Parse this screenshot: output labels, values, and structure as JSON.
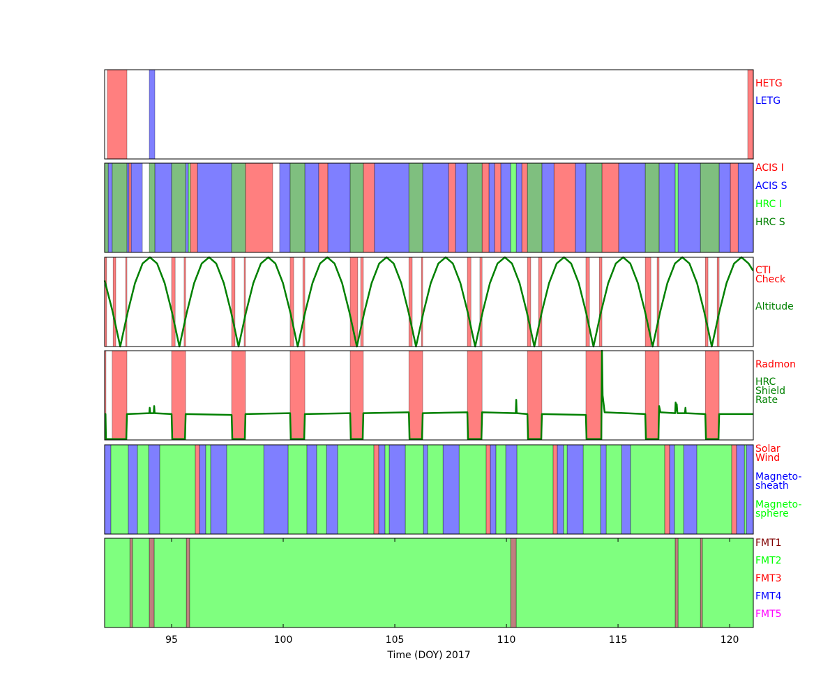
{
  "chart_data": [
    {
      "type": "span",
      "xlim": [
        92.0,
        121.06
      ],
      "series": [
        {
          "name": "HETG",
          "color": "#ff0000",
          "spans": [
            [
              92.12,
              93.0
            ],
            [
              120.81,
              121.06
            ]
          ]
        },
        {
          "name": "LETG",
          "color": "#0000ff",
          "spans": [
            [
              94.0,
              94.25
            ]
          ]
        }
      ]
    },
    {
      "type": "span",
      "xlim": [
        92.0,
        121.06
      ],
      "series": [
        {
          "name": "ACIS I",
          "color": "#ff0000",
          "spans": [
            [
              93.09,
              93.19
            ],
            [
              95.84,
              96.16
            ],
            [
              98.31,
              99.53
            ],
            [
              101.59,
              102.0
            ],
            [
              103.59,
              104.09
            ],
            [
              107.41,
              107.72
            ],
            [
              108.91,
              109.22
            ],
            [
              109.47,
              109.75
            ],
            [
              110.69,
              110.94
            ],
            [
              112.13,
              113.09
            ],
            [
              114.28,
              115.03
            ],
            [
              120.03,
              120.38
            ]
          ]
        },
        {
          "name": "ACIS S",
          "color": "#0000ff",
          "spans": [
            [
              92.16,
              92.34
            ],
            [
              93.0,
              93.09
            ],
            [
              93.19,
              93.69
            ],
            [
              94.25,
              95.0
            ],
            [
              95.63,
              95.75
            ],
            [
              96.16,
              97.69
            ],
            [
              99.84,
              100.31
            ],
            [
              100.97,
              101.59
            ],
            [
              102.0,
              103.0
            ],
            [
              104.09,
              105.63
            ],
            [
              106.25,
              107.41
            ],
            [
              107.72,
              108.25
            ],
            [
              109.22,
              109.47
            ],
            [
              109.75,
              110.19
            ],
            [
              110.44,
              110.69
            ],
            [
              111.59,
              112.13
            ],
            [
              113.09,
              113.56
            ],
            [
              115.03,
              116.22
            ],
            [
              116.84,
              117.56
            ],
            [
              117.69,
              118.69
            ],
            [
              119.53,
              120.03
            ],
            [
              120.38,
              121.06
            ]
          ]
        },
        {
          "name": "HRC I",
          "color": "#00ff00",
          "spans": [
            [
              95.75,
              95.84
            ],
            [
              110.19,
              110.44
            ],
            [
              117.56,
              117.69
            ]
          ]
        },
        {
          "name": "HRC S",
          "color": "#008000",
          "spans": [
            [
              92.0,
              92.16
            ],
            [
              92.34,
              93.0
            ],
            [
              94.0,
              94.25
            ],
            [
              95.0,
              95.63
            ],
            [
              97.69,
              98.31
            ],
            [
              100.31,
              100.97
            ],
            [
              103.0,
              103.59
            ],
            [
              105.63,
              106.25
            ],
            [
              108.25,
              108.91
            ],
            [
              110.94,
              111.59
            ],
            [
              113.56,
              114.28
            ],
            [
              116.22,
              116.84
            ],
            [
              118.69,
              119.53
            ]
          ]
        }
      ]
    },
    {
      "type": "span",
      "xlim": [
        92.0,
        121.06
      ],
      "ylim": [
        0,
        1
      ],
      "series": [
        {
          "name": "CTI\nCheck",
          "color": "#ff0000",
          "spans": [
            [
              92.0,
              92.09
            ],
            [
              92.38,
              92.5
            ],
            [
              92.94,
              93.0
            ],
            [
              95.0,
              95.16
            ],
            [
              95.56,
              95.63
            ],
            [
              97.69,
              97.84
            ],
            [
              98.25,
              98.31
            ],
            [
              100.31,
              100.47
            ],
            [
              100.88,
              100.97
            ],
            [
              103.0,
              103.34
            ],
            [
              103.47,
              103.59
            ],
            [
              105.63,
              105.78
            ],
            [
              106.19,
              106.25
            ],
            [
              108.25,
              108.41
            ],
            [
              108.81,
              108.91
            ],
            [
              110.94,
              111.09
            ],
            [
              111.44,
              111.59
            ],
            [
              113.56,
              113.72
            ],
            [
              114.16,
              114.28
            ],
            [
              116.22,
              116.47
            ],
            [
              116.75,
              116.84
            ],
            [
              118.91,
              119.03
            ],
            [
              119.44,
              119.53
            ]
          ]
        },
        {
          "name": "Altitude",
          "color": "#008000",
          "x": [
            92.0,
            92.35,
            92.7,
            93.03,
            93.36,
            93.7,
            94.03,
            94.35,
            94.69,
            95.02,
            95.35,
            95.68,
            96.01,
            96.35,
            96.68,
            97.0,
            97.34,
            97.67,
            98.0,
            98.33,
            98.66,
            99.0,
            99.33,
            99.65,
            99.99,
            100.32,
            100.65,
            100.98,
            101.31,
            101.65,
            101.98,
            102.3,
            102.64,
            102.97,
            103.3,
            103.63,
            103.96,
            104.3,
            104.63,
            104.95,
            105.29,
            105.62,
            105.95,
            106.28,
            106.61,
            106.95,
            107.28,
            107.6,
            107.94,
            108.27,
            108.6,
            108.93,
            109.26,
            109.6,
            109.93,
            110.25,
            110.59,
            110.92,
            111.25,
            111.58,
            111.91,
            112.25,
            112.58,
            112.9,
            113.24,
            113.57,
            113.9,
            114.23,
            114.56,
            114.9,
            115.23,
            115.55,
            115.89,
            116.22,
            116.55,
            116.88,
            117.21,
            117.55,
            117.88,
            118.2,
            118.54,
            118.87,
            119.2,
            119.53,
            119.86,
            120.2,
            120.53,
            120.85,
            121.05
          ],
          "values": [
            0.74,
            0.4,
            0,
            0.38,
            0.71,
            0.93,
            1.0,
            0.93,
            0.71,
            0.38,
            0,
            0.38,
            0.71,
            0.93,
            1.0,
            0.93,
            0.71,
            0.38,
            0,
            0.38,
            0.71,
            0.93,
            1.0,
            0.93,
            0.71,
            0.38,
            0,
            0.38,
            0.71,
            0.93,
            1.0,
            0.93,
            0.71,
            0.38,
            0,
            0.38,
            0.71,
            0.93,
            1.0,
            0.93,
            0.71,
            0.38,
            0,
            0.38,
            0.71,
            0.93,
            1.0,
            0.93,
            0.71,
            0.38,
            0,
            0.38,
            0.71,
            0.93,
            1.0,
            0.93,
            0.71,
            0.38,
            0,
            0.38,
            0.71,
            0.93,
            1.0,
            0.93,
            0.71,
            0.38,
            0,
            0.38,
            0.71,
            0.93,
            1.0,
            0.93,
            0.71,
            0.38,
            0,
            0.38,
            0.71,
            0.93,
            1.0,
            0.93,
            0.71,
            0.38,
            0,
            0.38,
            0.71,
            0.93,
            1.0,
            0.93,
            0.85
          ]
        }
      ]
    },
    {
      "type": "span",
      "xlim": [
        92.0,
        121.06
      ],
      "ylim": [
        0,
        1
      ],
      "series": [
        {
          "name": "Radmon",
          "color": "#ff0000",
          "spans": [
            [
              92.0,
              92.06
            ],
            [
              92.34,
              93.0
            ],
            [
              95.0,
              95.63
            ],
            [
              97.69,
              98.31
            ],
            [
              100.31,
              100.97
            ],
            [
              103.0,
              103.59
            ],
            [
              105.63,
              106.25
            ],
            [
              108.25,
              108.91
            ],
            [
              110.94,
              111.59
            ],
            [
              113.56,
              114.28
            ],
            [
              116.22,
              116.84
            ],
            [
              118.91,
              119.53
            ]
          ]
        },
        {
          "name": "HRC\nShield\nRate",
          "color": "#008000",
          "x": [
            92.0,
            92.04,
            92.06,
            92.97,
            93.0,
            94.0,
            94.02,
            94.04,
            94.2,
            94.22,
            94.24,
            95.0,
            95.03,
            95.6,
            95.63,
            97.69,
            97.72,
            98.28,
            98.31,
            100.31,
            100.34,
            100.94,
            100.97,
            103.0,
            103.03,
            103.56,
            103.59,
            105.63,
            105.66,
            106.22,
            106.25,
            108.25,
            108.28,
            108.88,
            108.91,
            110.42,
            110.44,
            110.46,
            110.94,
            110.97,
            111.56,
            111.59,
            113.56,
            113.59,
            114.25,
            114.28,
            114.31,
            114.4,
            116.22,
            116.25,
            116.81,
            116.84,
            116.9,
            117.56,
            117.58,
            117.6,
            117.63,
            117.66,
            118.0,
            118.02,
            118.04,
            118.91,
            118.94,
            119.5,
            119.53,
            121.05
          ],
          "values": [
            0.29,
            0.29,
            0.01,
            0.01,
            0.29,
            0.3,
            0.36,
            0.3,
            0.3,
            0.38,
            0.3,
            0.29,
            0.01,
            0.01,
            0.29,
            0.28,
            0.01,
            0.01,
            0.29,
            0.3,
            0.01,
            0.01,
            0.29,
            0.3,
            0.01,
            0.01,
            0.3,
            0.31,
            0.01,
            0.01,
            0.3,
            0.31,
            0.01,
            0.01,
            0.31,
            0.3,
            0.45,
            0.3,
            0.29,
            0.01,
            0.01,
            0.29,
            0.28,
            0.01,
            0.01,
            1.0,
            0.5,
            0.31,
            0.29,
            0.01,
            0.01,
            0.38,
            0.31,
            0.3,
            0.42,
            0.33,
            0.4,
            0.3,
            0.3,
            0.36,
            0.3,
            0.29,
            0.01,
            0.01,
            0.29,
            0.29
          ]
        }
      ]
    },
    {
      "type": "span",
      "xlim": [
        92.0,
        121.06
      ],
      "series": [
        {
          "name": "Solar\nWind",
          "color": "#ff0000",
          "spans": [
            [
              96.06,
              96.25
            ],
            [
              104.06,
              104.28
            ],
            [
              109.09,
              109.28
            ],
            [
              112.09,
              112.28
            ],
            [
              117.09,
              117.31
            ],
            [
              120.09,
              120.31
            ]
          ]
        },
        {
          "name": "Magneto-\nsheath",
          "color": "#0000ff",
          "spans": [
            [
              92.0,
              92.28
            ],
            [
              93.06,
              93.47
            ],
            [
              93.97,
              94.47
            ],
            [
              96.25,
              96.53
            ],
            [
              96.75,
              97.47
            ],
            [
              99.13,
              100.22
            ],
            [
              101.06,
              101.5
            ],
            [
              101.94,
              102.44
            ],
            [
              104.28,
              104.56
            ],
            [
              104.75,
              105.47
            ],
            [
              106.28,
              106.47
            ],
            [
              107.16,
              107.88
            ],
            [
              109.28,
              109.53
            ],
            [
              109.97,
              110.47
            ],
            [
              112.28,
              112.56
            ],
            [
              112.72,
              113.44
            ],
            [
              114.22,
              114.47
            ],
            [
              115.16,
              115.56
            ],
            [
              117.31,
              117.53
            ],
            [
              117.94,
              118.53
            ],
            [
              120.31,
              120.66
            ],
            [
              120.75,
              121.06
            ]
          ]
        },
        {
          "name": "Magneto-\nsphere",
          "color": "#00ff00",
          "spans": [
            [
              92.28,
              93.06
            ],
            [
              93.47,
              93.97
            ],
            [
              94.47,
              96.06
            ],
            [
              96.53,
              96.75
            ],
            [
              97.47,
              99.13
            ],
            [
              100.22,
              101.06
            ],
            [
              101.5,
              101.94
            ],
            [
              102.44,
              104.06
            ],
            [
              104.56,
              104.75
            ],
            [
              105.47,
              106.28
            ],
            [
              106.47,
              107.16
            ],
            [
              107.88,
              109.09
            ],
            [
              109.53,
              109.97
            ],
            [
              110.47,
              112.09
            ],
            [
              112.56,
              112.72
            ],
            [
              113.44,
              114.22
            ],
            [
              114.47,
              115.16
            ],
            [
              115.56,
              117.09
            ],
            [
              117.53,
              117.94
            ],
            [
              118.53,
              120.09
            ],
            [
              120.66,
              120.75
            ]
          ]
        }
      ]
    },
    {
      "type": "span",
      "xlim": [
        92.0,
        121.06
      ],
      "xticks": [
        95,
        100,
        105,
        110,
        115,
        120
      ],
      "xlabel": "Time (DOY) 2017",
      "series": [
        {
          "name": "FMT1",
          "color": "#800000",
          "spans": [
            [
              93.13,
              93.25
            ],
            [
              94.0,
              94.22
            ],
            [
              95.66,
              95.81
            ],
            [
              110.19,
              110.44
            ],
            [
              117.56,
              117.69
            ],
            [
              118.69,
              118.78
            ]
          ]
        },
        {
          "name": "FMT2",
          "color": "#00ff00",
          "spans": [
            [
              92.0,
              93.13
            ],
            [
              93.25,
              94.0
            ],
            [
              94.22,
              95.66
            ],
            [
              95.81,
              110.19
            ],
            [
              110.44,
              117.56
            ],
            [
              117.69,
              118.69
            ],
            [
              118.78,
              121.06
            ]
          ]
        },
        {
          "name": "FMT3",
          "color": "#ff0000",
          "spans": []
        },
        {
          "name": "FMT4",
          "color": "#0000ff",
          "spans": []
        },
        {
          "name": "FMT5",
          "color": "#ff00ff",
          "spans": []
        }
      ]
    }
  ]
}
